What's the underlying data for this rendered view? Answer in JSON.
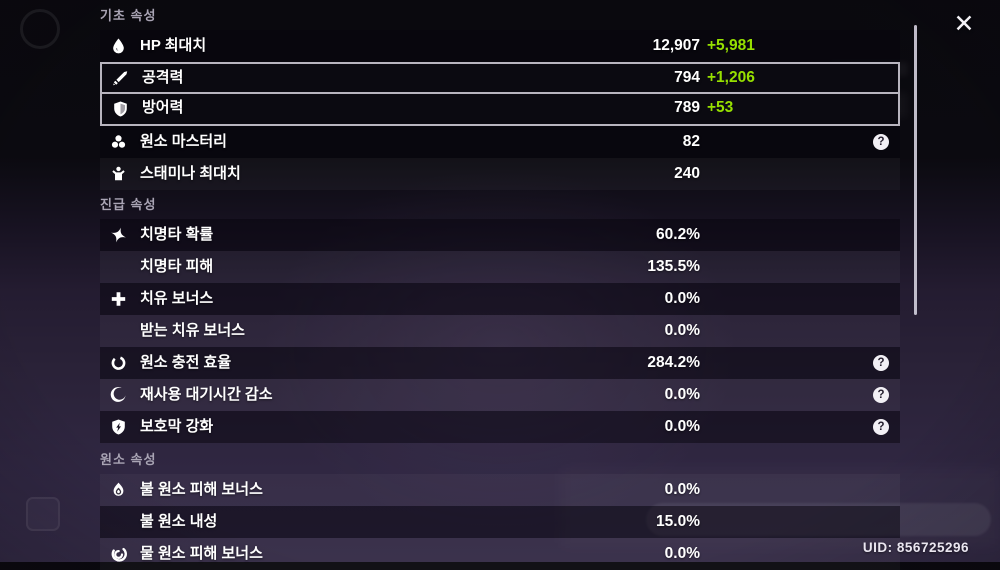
{
  "window": {
    "close_glyph": "✕",
    "help_glyph": "?",
    "uid_text": "UID: 856725296"
  },
  "colors": {
    "bonus_green": "#96e000",
    "selected_border": "#d7d4de",
    "scrollbar": "#d3cfdd"
  },
  "stats_panel": {
    "sections": [
      {
        "title": "기초 속성",
        "rows": [
          {
            "icon": "hp-icon",
            "label": "HP 최대치",
            "value": "12,907",
            "bonus": "+5,981",
            "shaded": true,
            "selected": false,
            "help": false
          },
          {
            "icon": "attack-icon",
            "label": "공격력",
            "value": "794",
            "bonus": "+1,206",
            "shaded": true,
            "selected": true,
            "help": false
          },
          {
            "icon": "defense-icon",
            "label": "방어력",
            "value": "789",
            "bonus": "+53",
            "shaded": true,
            "selected": true,
            "help": false
          },
          {
            "icon": "elemental-mastery-icon",
            "label": "원소 마스터리",
            "value": "82",
            "bonus": null,
            "shaded": true,
            "selected": false,
            "help": true
          },
          {
            "icon": "stamina-icon",
            "label": "스태미나 최대치",
            "value": "240",
            "bonus": null,
            "shaded": false,
            "selected": false,
            "help": false
          }
        ]
      },
      {
        "title": "진급 속성",
        "rows": [
          {
            "icon": "crit-rate-icon",
            "label": "치명타 확률",
            "value": "60.2%",
            "bonus": null,
            "shaded": true,
            "selected": false,
            "help": false
          },
          {
            "icon": null,
            "label": "치명타 피해",
            "value": "135.5%",
            "bonus": null,
            "shaded": false,
            "selected": false,
            "help": false
          },
          {
            "icon": "healing-bonus-icon",
            "label": "치유 보너스",
            "value": "0.0%",
            "bonus": null,
            "shaded": true,
            "selected": false,
            "help": false
          },
          {
            "icon": null,
            "label": "받는 치유 보너스",
            "value": "0.0%",
            "bonus": null,
            "shaded": false,
            "selected": false,
            "help": false
          },
          {
            "icon": "energy-recharge-icon",
            "label": "원소 충전 효율",
            "value": "284.2%",
            "bonus": null,
            "shaded": true,
            "selected": false,
            "help": true
          },
          {
            "icon": "cooldown-reduction-icon",
            "label": "재사용 대기시간 감소",
            "value": "0.0%",
            "bonus": null,
            "shaded": false,
            "selected": false,
            "help": true
          },
          {
            "icon": "shield-strength-icon",
            "label": "보호막 강화",
            "value": "0.0%",
            "bonus": null,
            "shaded": true,
            "selected": false,
            "help": true
          }
        ]
      },
      {
        "title": "원소 속성",
        "rows": [
          {
            "icon": "pyro-icon",
            "label": "불 원소 피해 보너스",
            "value": "0.0%",
            "bonus": null,
            "shaded": false,
            "selected": false,
            "help": false
          },
          {
            "icon": null,
            "label": "불 원소 내성",
            "value": "15.0%",
            "bonus": null,
            "shaded": true,
            "selected": false,
            "help": false
          },
          {
            "icon": "hydro-icon",
            "label": "물 원소 피해 보너스",
            "value": "0.0%",
            "bonus": null,
            "shaded": false,
            "selected": false,
            "help": false
          }
        ]
      }
    ]
  }
}
